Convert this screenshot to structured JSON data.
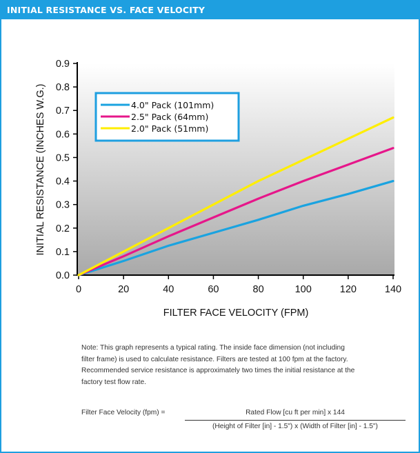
{
  "header": {
    "title": "INITIAL RESISTANCE VS. FACE VELOCITY"
  },
  "colors": {
    "accent": "#1e9fe0",
    "series_blue": "#1aa3e0",
    "series_magenta": "#e6168a",
    "series_yellow": "#ffee00"
  },
  "chart_data": {
    "type": "line",
    "xlabel": "FILTER FACE VELOCITY (FPM)",
    "ylabel": "INITIAL RESISTANCE (INCHES W.G.)",
    "xlim": [
      0,
      140
    ],
    "ylim": [
      0,
      0.9
    ],
    "x_ticks": [
      "0",
      "20",
      "40",
      "60",
      "80",
      "100",
      "120",
      "140"
    ],
    "y_ticks": [
      "0.0",
      "0.1",
      "0.2",
      "0.3",
      "0.4",
      "0.5",
      "0.6",
      "0.7",
      "0.8",
      "0.9"
    ],
    "grid": false,
    "legend_position": "top-left",
    "series": [
      {
        "name": "4.0\" Pack (101mm)",
        "color": "#1aa3e0",
        "points": [
          [
            0,
            0
          ],
          [
            20,
            0.06
          ],
          [
            40,
            0.125
          ],
          [
            60,
            0.18
          ],
          [
            80,
            0.235
          ],
          [
            100,
            0.295
          ],
          [
            120,
            0.345
          ],
          [
            140,
            0.4
          ]
        ]
      },
      {
        "name": "2.5\" Pack (64mm)",
        "color": "#e6168a",
        "points": [
          [
            0,
            0
          ],
          [
            20,
            0.08
          ],
          [
            40,
            0.165
          ],
          [
            60,
            0.245
          ],
          [
            80,
            0.325
          ],
          [
            100,
            0.4
          ],
          [
            120,
            0.47
          ],
          [
            140,
            0.54
          ]
        ]
      },
      {
        "name": "2.0\" Pack (51mm)",
        "color": "#ffee00",
        "points": [
          [
            0,
            0
          ],
          [
            20,
            0.1
          ],
          [
            40,
            0.2
          ],
          [
            60,
            0.3
          ],
          [
            80,
            0.4
          ],
          [
            100,
            0.49
          ],
          [
            120,
            0.58
          ],
          [
            140,
            0.67
          ]
        ]
      }
    ]
  },
  "note": {
    "lines": [
      "Note: This graph represents a typical rating. The inside face dimension (not including",
      " filter frame) is used to calculate resistance. Filters are tested at 100 fpm at the factory.",
      "Recommended service resistance is approximately two times the initial resistance at the",
      "factory test flow rate."
    ]
  },
  "formula": {
    "label": "Filter Face Velocity (fpm)  =",
    "numerator": "Rated Flow [cu ft per min]  x  144",
    "denominator": "(Height of Filter [in] - 1.5\")  x  (Width of Filter [in] - 1.5\")"
  }
}
